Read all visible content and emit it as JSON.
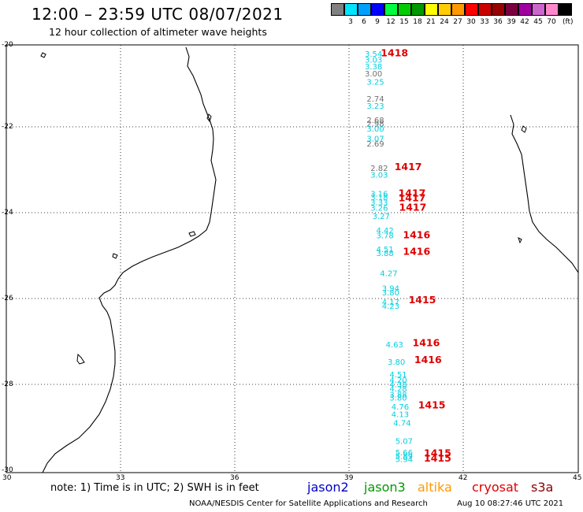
{
  "header": {
    "title": "12:00 – 23:59 UTC 08/07/2021",
    "subtitle": "12 hour collection of altimeter wave heights"
  },
  "legend": {
    "unit": "(ft)",
    "bins": [
      {
        "label": "",
        "color": "#808080"
      },
      {
        "label": "3",
        "color": "#00e5ff"
      },
      {
        "label": "6",
        "color": "#00a0ff"
      },
      {
        "label": "9",
        "color": "#0000ff"
      },
      {
        "label": "12",
        "color": "#00ff40"
      },
      {
        "label": "15",
        "color": "#00cc00"
      },
      {
        "label": "18",
        "color": "#009900"
      },
      {
        "label": "21",
        "color": "#ffff00"
      },
      {
        "label": "24",
        "color": "#ffcc00"
      },
      {
        "label": "27",
        "color": "#ff9900"
      },
      {
        "label": "30",
        "color": "#ff0000"
      },
      {
        "label": "33",
        "color": "#cc0000"
      },
      {
        "label": "36",
        "color": "#990000"
      },
      {
        "label": "39",
        "color": "#7a0040"
      },
      {
        "label": "42",
        "color": "#a000a0"
      },
      {
        "label": "45",
        "color": "#cc66cc"
      },
      {
        "label": "70",
        "color": "#ff88cc"
      },
      {
        "label": "",
        "color": "#000000"
      }
    ]
  },
  "map": {
    "lat_labels": [
      "-20",
      "-22",
      "-24",
      "-26",
      "-28",
      "-30"
    ],
    "lon_labels": [
      "30",
      "33",
      "36",
      "39",
      "42",
      "45"
    ],
    "colors": {
      "cyan": "#00d0e0",
      "gray": "#707070",
      "orbit": "#e00000"
    },
    "observations": [
      {
        "lon": 39.4,
        "lat": -20.2,
        "value": "3.54",
        "color": "cyan"
      },
      {
        "lon": 39.4,
        "lat": -20.34,
        "value": "3.03",
        "color": "cyan"
      },
      {
        "lon": 39.4,
        "lat": -20.5,
        "value": "3.38",
        "color": "cyan"
      },
      {
        "lon": 39.4,
        "lat": -20.66,
        "value": "3.00",
        "color": "gray"
      },
      {
        "lon": 39.45,
        "lat": -20.86,
        "value": "3.25",
        "color": "cyan"
      },
      {
        "lon": 39.45,
        "lat": -21.25,
        "value": "2.74",
        "color": "gray"
      },
      {
        "lon": 39.45,
        "lat": -21.42,
        "value": "3.23",
        "color": "cyan"
      },
      {
        "lon": 39.45,
        "lat": -21.75,
        "value": "2.68",
        "color": "gray"
      },
      {
        "lon": 39.45,
        "lat": -21.83,
        "value": "2.98",
        "color": "gray"
      },
      {
        "lon": 39.45,
        "lat": -21.95,
        "value": "3.00",
        "color": "cyan"
      },
      {
        "lon": 39.45,
        "lat": -22.18,
        "value": "3.07",
        "color": "cyan"
      },
      {
        "lon": 39.45,
        "lat": -22.3,
        "value": "2.69",
        "color": "gray"
      },
      {
        "lon": 39.55,
        "lat": -22.87,
        "value": "2.82",
        "color": "gray"
      },
      {
        "lon": 39.55,
        "lat": -23.03,
        "value": "3.03",
        "color": "cyan"
      },
      {
        "lon": 39.55,
        "lat": -23.47,
        "value": "3.16",
        "color": "cyan"
      },
      {
        "lon": 39.55,
        "lat": -23.55,
        "value": "3.18",
        "color": "cyan"
      },
      {
        "lon": 39.55,
        "lat": -23.67,
        "value": "3.33",
        "color": "cyan"
      },
      {
        "lon": 39.55,
        "lat": -23.8,
        "value": "3.26",
        "color": "cyan"
      },
      {
        "lon": 39.6,
        "lat": -24.0,
        "value": "3.27",
        "color": "cyan"
      },
      {
        "lon": 39.7,
        "lat": -24.33,
        "value": "4.42",
        "color": "cyan"
      },
      {
        "lon": 39.7,
        "lat": -24.45,
        "value": "3.78",
        "color": "cyan"
      },
      {
        "lon": 39.7,
        "lat": -24.77,
        "value": "4.51",
        "color": "cyan"
      },
      {
        "lon": 39.7,
        "lat": -24.86,
        "value": "3.88",
        "color": "cyan"
      },
      {
        "lon": 39.8,
        "lat": -25.33,
        "value": "4.27",
        "color": "cyan"
      },
      {
        "lon": 39.85,
        "lat": -25.68,
        "value": "3.94",
        "color": "cyan"
      },
      {
        "lon": 39.85,
        "lat": -25.78,
        "value": "3.80",
        "color": "cyan"
      },
      {
        "lon": 39.85,
        "lat": -26.0,
        "value": "4.17",
        "color": "cyan"
      },
      {
        "lon": 39.85,
        "lat": -26.1,
        "value": "4.23",
        "color": "cyan"
      },
      {
        "lon": 39.95,
        "lat": -27.0,
        "value": "4.63",
        "color": "cyan"
      },
      {
        "lon": 40.0,
        "lat": -27.4,
        "value": "3.80",
        "color": "cyan"
      },
      {
        "lon": 40.05,
        "lat": -27.7,
        "value": "4.51",
        "color": "cyan"
      },
      {
        "lon": 40.05,
        "lat": -27.83,
        "value": "4.20",
        "color": "cyan"
      },
      {
        "lon": 40.05,
        "lat": -27.93,
        "value": "4.38",
        "color": "cyan"
      },
      {
        "lon": 40.05,
        "lat": -28.03,
        "value": "4.28",
        "color": "cyan"
      },
      {
        "lon": 40.05,
        "lat": -28.17,
        "value": "3.88",
        "color": "cyan"
      },
      {
        "lon": 40.05,
        "lat": -28.24,
        "value": "3.80",
        "color": "cyan"
      },
      {
        "lon": 40.1,
        "lat": -28.45,
        "value": "4.76",
        "color": "cyan"
      },
      {
        "lon": 40.1,
        "lat": -28.63,
        "value": "4.13",
        "color": "cyan"
      },
      {
        "lon": 40.15,
        "lat": -28.83,
        "value": "4.74",
        "color": "cyan"
      },
      {
        "lon": 40.2,
        "lat": -29.25,
        "value": "5.07",
        "color": "cyan"
      },
      {
        "lon": 40.2,
        "lat": -29.52,
        "value": "5.66",
        "color": "cyan"
      },
      {
        "lon": 40.2,
        "lat": -29.6,
        "value": "5.89",
        "color": "cyan"
      },
      {
        "lon": 40.2,
        "lat": -29.68,
        "value": "5.94",
        "color": "cyan"
      }
    ],
    "orbits": [
      {
        "lon": 39.82,
        "lat": -20.19,
        "label": "1418"
      },
      {
        "lon": 40.18,
        "lat": -22.85,
        "label": "1417"
      },
      {
        "lon": 40.28,
        "lat": -23.47,
        "label": "1417"
      },
      {
        "lon": 40.28,
        "lat": -23.58,
        "label": "1417"
      },
      {
        "lon": 40.3,
        "lat": -23.8,
        "label": "1417"
      },
      {
        "lon": 40.4,
        "lat": -24.45,
        "label": "1416"
      },
      {
        "lon": 40.4,
        "lat": -24.83,
        "label": "1416"
      },
      {
        "lon": 40.55,
        "lat": -25.97,
        "label": "1415"
      },
      {
        "lon": 40.65,
        "lat": -26.97,
        "label": "1416"
      },
      {
        "lon": 40.7,
        "lat": -27.37,
        "label": "1416"
      },
      {
        "lon": 40.8,
        "lat": -28.43,
        "label": "1415"
      },
      {
        "lon": 40.95,
        "lat": -29.55,
        "label": "1415"
      },
      {
        "lon": 40.95,
        "lat": -29.67,
        "label": "1415"
      }
    ]
  },
  "footer": {
    "note": "note: 1) Time is in UTC; 2) SWH is in feet",
    "satellites": [
      {
        "name": "jason2",
        "color": "#0000cc"
      },
      {
        "name": "jason3",
        "color": "#009900"
      },
      {
        "name": "altika",
        "color": "#ff9900"
      },
      {
        "name": "cryosat",
        "color": "#dd0000"
      },
      {
        "name": "s3a",
        "color": "#880000"
      }
    ],
    "credit": "NOAA/NESDIS Center for Satellite Applications and Research",
    "timestamp": "Aug 10 08:27:46 UTC 2021"
  }
}
